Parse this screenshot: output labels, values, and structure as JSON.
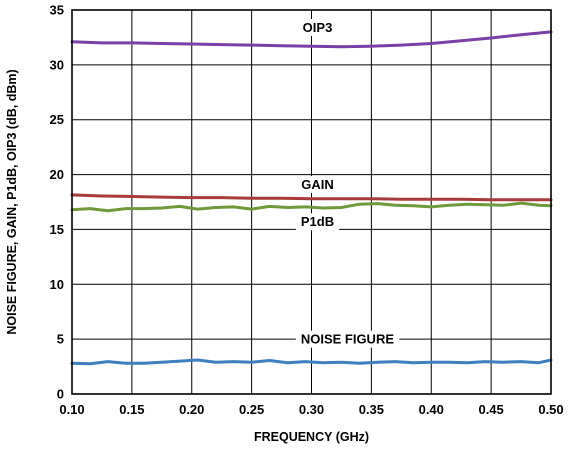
{
  "chart_data": {
    "type": "line",
    "title": "",
    "xlabel": "FREQUENCY (GHz)",
    "ylabel": "NOISE FIGURE, GAIN, P1dB, OIP3 (dB, dBm)",
    "xlim": [
      0.1,
      0.5
    ],
    "ylim": [
      0,
      35
    ],
    "xticks": [
      "0.10",
      "0.15",
      "0.20",
      "0.25",
      "0.30",
      "0.35",
      "0.40",
      "0.45",
      "0.50"
    ],
    "yticks": [
      "0",
      "5",
      "10",
      "15",
      "20",
      "25",
      "30",
      "35"
    ],
    "grid": true,
    "series": [
      {
        "name": "OIP3",
        "color": "#7b3fa8",
        "label_at": [
          0.305,
          33.4
        ],
        "x": [
          0.1,
          0.125,
          0.15,
          0.175,
          0.2,
          0.225,
          0.25,
          0.275,
          0.3,
          0.325,
          0.35,
          0.375,
          0.4,
          0.425,
          0.45,
          0.475,
          0.5
        ],
        "y": [
          32.1,
          32.0,
          32.0,
          31.95,
          31.9,
          31.85,
          31.8,
          31.75,
          31.7,
          31.65,
          31.7,
          31.8,
          31.95,
          32.2,
          32.45,
          32.75,
          33.0
        ]
      },
      {
        "name": "GAIN",
        "color": "#a83a3a",
        "label_at": [
          0.305,
          19.1
        ],
        "x": [
          0.1,
          0.125,
          0.15,
          0.175,
          0.2,
          0.225,
          0.25,
          0.275,
          0.3,
          0.325,
          0.35,
          0.375,
          0.4,
          0.425,
          0.45,
          0.475,
          0.5
        ],
        "y": [
          18.15,
          18.05,
          18.0,
          17.95,
          17.9,
          17.9,
          17.85,
          17.85,
          17.8,
          17.8,
          17.8,
          17.75,
          17.75,
          17.75,
          17.7,
          17.7,
          17.7
        ]
      },
      {
        "name": "P1dB",
        "color": "#6e9a3c",
        "label_at": [
          0.305,
          15.7
        ],
        "x": [
          0.1,
          0.115,
          0.13,
          0.145,
          0.16,
          0.175,
          0.19,
          0.205,
          0.22,
          0.235,
          0.25,
          0.265,
          0.28,
          0.295,
          0.31,
          0.325,
          0.34,
          0.355,
          0.37,
          0.385,
          0.4,
          0.415,
          0.43,
          0.445,
          0.46,
          0.475,
          0.49,
          0.5
        ],
        "y": [
          16.8,
          16.9,
          16.7,
          16.9,
          16.9,
          16.95,
          17.1,
          16.85,
          17.0,
          17.05,
          16.85,
          17.1,
          17.0,
          17.05,
          16.95,
          17.0,
          17.3,
          17.35,
          17.2,
          17.15,
          17.05,
          17.2,
          17.3,
          17.25,
          17.2,
          17.4,
          17.2,
          17.15
        ]
      },
      {
        "name": "NOISE FIGURE",
        "color": "#3d7fc1",
        "label_at": [
          0.33,
          5.0
        ],
        "x": [
          0.1,
          0.115,
          0.13,
          0.145,
          0.16,
          0.175,
          0.19,
          0.205,
          0.22,
          0.235,
          0.25,
          0.265,
          0.28,
          0.295,
          0.31,
          0.325,
          0.34,
          0.355,
          0.37,
          0.385,
          0.4,
          0.415,
          0.43,
          0.445,
          0.46,
          0.475,
          0.49,
          0.5
        ],
        "y": [
          2.8,
          2.75,
          2.95,
          2.8,
          2.8,
          2.9,
          3.0,
          3.1,
          2.9,
          2.95,
          2.9,
          3.05,
          2.85,
          2.95,
          2.85,
          2.9,
          2.8,
          2.9,
          2.95,
          2.85,
          2.9,
          2.9,
          2.85,
          2.95,
          2.9,
          2.95,
          2.85,
          3.1
        ]
      }
    ]
  }
}
